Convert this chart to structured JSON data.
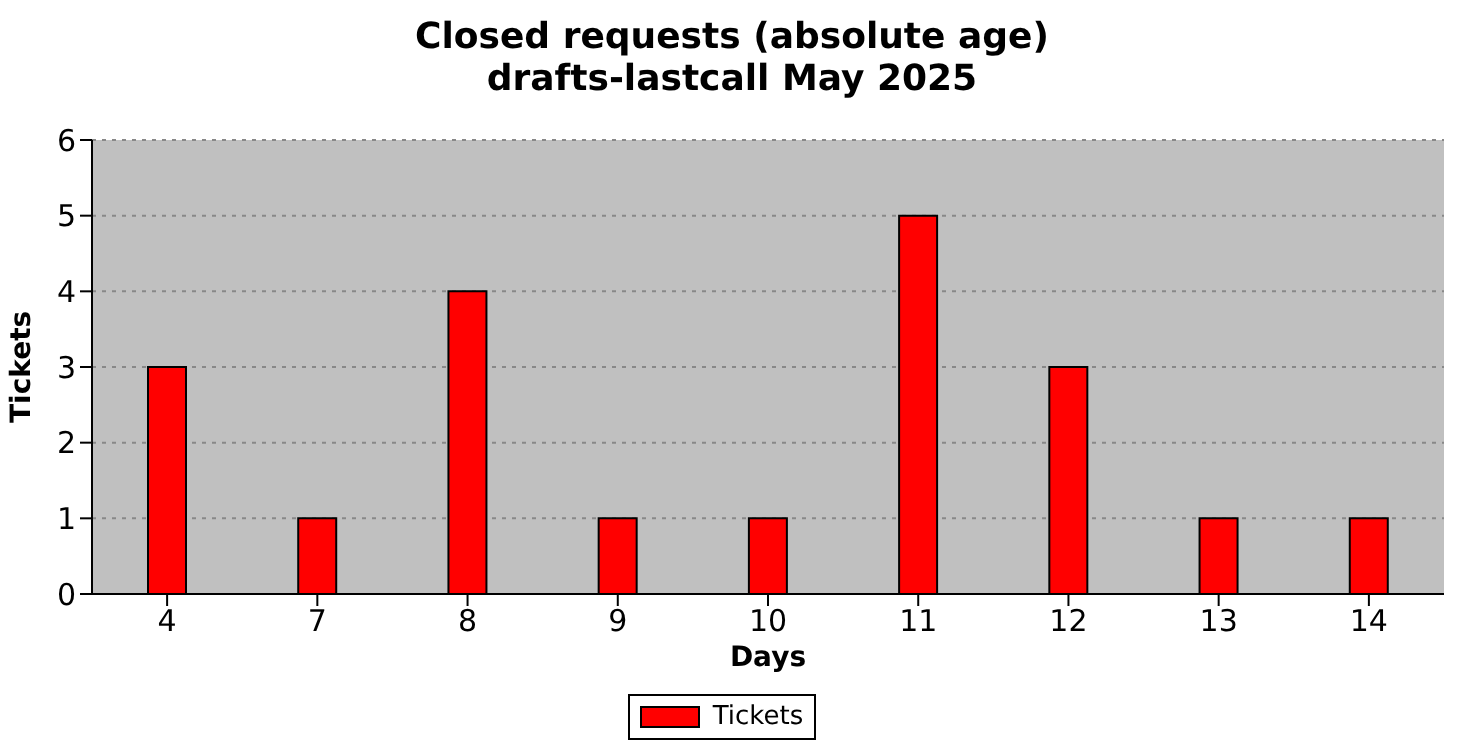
{
  "chart_data": {
    "type": "bar",
    "title": "Closed requests (absolute age)",
    "subtitle": "drafts-lastcall May 2025",
    "xlabel": "Days",
    "ylabel": "Tickets",
    "categories": [
      "4",
      "7",
      "8",
      "9",
      "10",
      "11",
      "12",
      "13",
      "14"
    ],
    "series": [
      {
        "name": "Tickets",
        "color": "#ff0000",
        "values": [
          3,
          1,
          4,
          1,
          1,
          5,
          3,
          1,
          1
        ]
      }
    ],
    "ylim": [
      0,
      6
    ],
    "yticks": [
      0,
      1,
      2,
      3,
      4,
      5,
      6
    ],
    "grid": "y",
    "legend": "bottom"
  }
}
